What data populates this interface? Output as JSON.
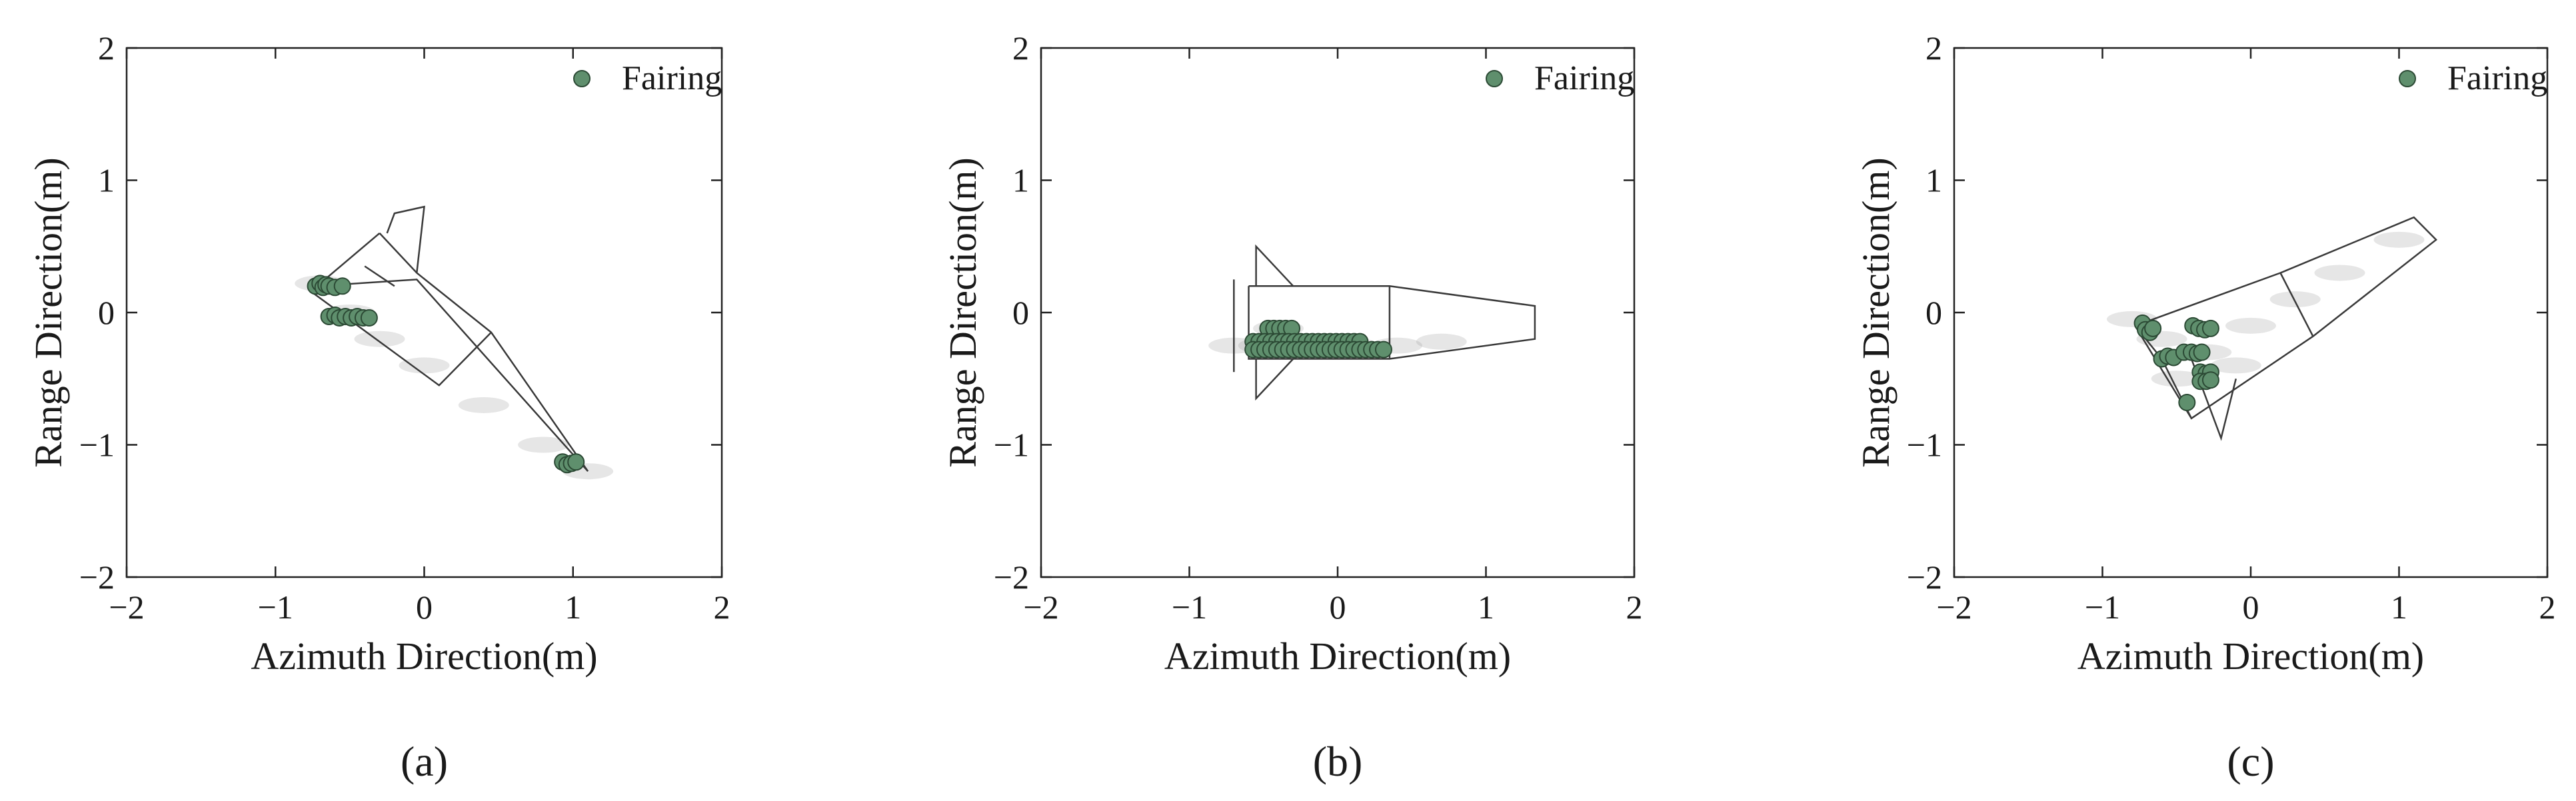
{
  "colors": {
    "marker_fill": "#5f8f6d",
    "marker_edge": "#2c4a35",
    "outline": "#3a3a3a",
    "axis": "#222222",
    "clutter": "#9a9a9a"
  },
  "chart_data": [
    {
      "type": "scatter",
      "panel_label": "(a)",
      "xlabel": "Azimuth Direction(m)",
      "ylabel": "Range Direction(m)",
      "xlim": [
        -2,
        2
      ],
      "ylim": [
        -2,
        2
      ],
      "xticks": [
        "−2",
        "−1",
        "0",
        "1",
        "2"
      ],
      "yticks": [
        "−2",
        "−1",
        "0",
        "1",
        "2"
      ],
      "legend_placement": "top-right",
      "series": [
        {
          "name": "Fairing",
          "points": [
            [
              -0.73,
              0.2
            ],
            [
              -0.7,
              0.22
            ],
            [
              -0.68,
              0.19
            ],
            [
              -0.66,
              0.21
            ],
            [
              -0.64,
              0.2
            ],
            [
              -0.6,
              0.19
            ],
            [
              -0.55,
              0.2
            ],
            [
              -0.64,
              -0.03
            ],
            [
              -0.6,
              -0.02
            ],
            [
              -0.57,
              -0.04
            ],
            [
              -0.53,
              -0.03
            ],
            [
              -0.49,
              -0.04
            ],
            [
              -0.45,
              -0.03
            ],
            [
              -0.41,
              -0.04
            ],
            [
              -0.37,
              -0.04
            ],
            [
              0.93,
              -1.13
            ],
            [
              0.96,
              -1.15
            ],
            [
              0.99,
              -1.14
            ],
            [
              1.02,
              -1.13
            ]
          ]
        }
      ],
      "outline": [
        {
          "name": "nose-cone",
          "polyline": [
            [
              -0.3,
              0.6
            ],
            [
              -0.05,
              0.3
            ],
            [
              0.45,
              -0.15
            ],
            [
              1.1,
              -1.2
            ],
            [
              -0.05,
              0.25
            ],
            [
              -0.72,
              0.2
            ],
            [
              -0.3,
              0.6
            ]
          ]
        },
        {
          "name": "upper-fin",
          "polyline": [
            [
              -0.25,
              0.6
            ],
            [
              -0.2,
              0.75
            ],
            [
              0.0,
              0.8
            ],
            [
              -0.05,
              0.3
            ]
          ]
        },
        {
          "name": "body-panel",
          "polyline": [
            [
              -0.75,
              0.15
            ],
            [
              0.1,
              -0.55
            ],
            [
              0.45,
              -0.15
            ]
          ]
        },
        {
          "name": "fin-root",
          "polyline": [
            [
              -0.4,
              0.35
            ],
            [
              -0.2,
              0.2
            ]
          ]
        }
      ],
      "clutter": [
        [
          -0.7,
          0.22
        ],
        [
          -0.5,
          0.0
        ],
        [
          -0.3,
          -0.2
        ],
        [
          0.0,
          -0.4
        ],
        [
          0.4,
          -0.7
        ],
        [
          0.8,
          -1.0
        ],
        [
          1.1,
          -1.2
        ]
      ]
    },
    {
      "type": "scatter",
      "panel_label": "(b)",
      "xlabel": "Azimuth Direction(m)",
      "ylabel": "Range Direction(m)",
      "xlim": [
        -2,
        2
      ],
      "ylim": [
        -2,
        2
      ],
      "xticks": [
        "−2",
        "−1",
        "0",
        "1",
        "2"
      ],
      "yticks": [
        "−2",
        "−1",
        "0",
        "1",
        "2"
      ],
      "legend_placement": "top-right",
      "series": [
        {
          "name": "Fairing",
          "points": [
            [
              -0.47,
              -0.12
            ],
            [
              -0.43,
              -0.12
            ],
            [
              -0.39,
              -0.12
            ],
            [
              -0.35,
              -0.12
            ],
            [
              -0.31,
              -0.12
            ],
            [
              -0.57,
              -0.22
            ],
            [
              -0.53,
              -0.22
            ],
            [
              -0.49,
              -0.22
            ],
            [
              -0.45,
              -0.22
            ],
            [
              -0.41,
              -0.22
            ],
            [
              -0.37,
              -0.22
            ],
            [
              -0.33,
              -0.22
            ],
            [
              -0.29,
              -0.22
            ],
            [
              -0.25,
              -0.22
            ],
            [
              -0.21,
              -0.22
            ],
            [
              -0.17,
              -0.22
            ],
            [
              -0.13,
              -0.22
            ],
            [
              -0.09,
              -0.22
            ],
            [
              -0.05,
              -0.22
            ],
            [
              -0.01,
              -0.22
            ],
            [
              0.03,
              -0.22
            ],
            [
              0.07,
              -0.22
            ],
            [
              0.11,
              -0.22
            ],
            [
              0.15,
              -0.22
            ],
            [
              -0.57,
              -0.28
            ],
            [
              -0.53,
              -0.28
            ],
            [
              -0.49,
              -0.28
            ],
            [
              -0.45,
              -0.28
            ],
            [
              -0.41,
              -0.28
            ],
            [
              -0.37,
              -0.28
            ],
            [
              -0.33,
              -0.28
            ],
            [
              -0.29,
              -0.28
            ],
            [
              -0.25,
              -0.28
            ],
            [
              -0.21,
              -0.28
            ],
            [
              -0.17,
              -0.28
            ],
            [
              -0.13,
              -0.28
            ],
            [
              -0.09,
              -0.28
            ],
            [
              -0.05,
              -0.28
            ],
            [
              -0.01,
              -0.28
            ],
            [
              0.03,
              -0.28
            ],
            [
              0.07,
              -0.28
            ],
            [
              0.11,
              -0.28
            ],
            [
              0.15,
              -0.28
            ],
            [
              0.19,
              -0.28
            ],
            [
              0.23,
              -0.28
            ],
            [
              0.27,
              -0.28
            ],
            [
              0.31,
              -0.28
            ]
          ]
        }
      ],
      "outline": [
        {
          "name": "body",
          "polyline": [
            [
              -0.6,
              0.2
            ],
            [
              0.35,
              0.2
            ],
            [
              1.33,
              0.05
            ],
            [
              1.33,
              -0.2
            ],
            [
              0.35,
              -0.35
            ],
            [
              -0.6,
              -0.35
            ],
            [
              -0.6,
              0.2
            ]
          ]
        },
        {
          "name": "upper-fin",
          "polyline": [
            [
              -0.55,
              0.2
            ],
            [
              -0.55,
              0.5
            ],
            [
              -0.3,
              0.2
            ]
          ]
        },
        {
          "name": "lower-fin",
          "polyline": [
            [
              -0.55,
              -0.35
            ],
            [
              -0.55,
              -0.65
            ],
            [
              -0.3,
              -0.35
            ]
          ]
        },
        {
          "name": "rear-plate",
          "polyline": [
            [
              -0.7,
              0.25
            ],
            [
              -0.7,
              -0.45
            ]
          ]
        },
        {
          "name": "section-line",
          "polyline": [
            [
              0.35,
              0.2
            ],
            [
              0.35,
              -0.35
            ]
          ]
        }
      ],
      "clutter": [
        [
          -0.5,
          -0.25
        ],
        [
          -0.2,
          -0.25
        ],
        [
          0.1,
          -0.25
        ],
        [
          0.4,
          -0.25
        ],
        [
          0.7,
          -0.22
        ],
        [
          -0.7,
          -0.25
        ],
        [
          -0.4,
          -0.12
        ]
      ]
    },
    {
      "type": "scatter",
      "panel_label": "(c)",
      "xlabel": "Azimuth Direction(m)",
      "ylabel": "Range Direction(m)",
      "xlim": [
        -2,
        2
      ],
      "ylim": [
        -2,
        2
      ],
      "xticks": [
        "−2",
        "−1",
        "0",
        "1",
        "2"
      ],
      "yticks": [
        "−2",
        "−1",
        "0",
        "1",
        "2"
      ],
      "legend_placement": "top-right",
      "series": [
        {
          "name": "Fairing",
          "points": [
            [
              -0.73,
              -0.08
            ],
            [
              -0.71,
              -0.13
            ],
            [
              -0.68,
              -0.15
            ],
            [
              -0.66,
              -0.12
            ],
            [
              -0.39,
              -0.1
            ],
            [
              -0.35,
              -0.12
            ],
            [
              -0.31,
              -0.13
            ],
            [
              -0.27,
              -0.12
            ],
            [
              -0.6,
              -0.35
            ],
            [
              -0.56,
              -0.33
            ],
            [
              -0.52,
              -0.34
            ],
            [
              -0.45,
              -0.3
            ],
            [
              -0.4,
              -0.3
            ],
            [
              -0.36,
              -0.31
            ],
            [
              -0.33,
              -0.3
            ],
            [
              -0.34,
              -0.45
            ],
            [
              -0.3,
              -0.46
            ],
            [
              -0.27,
              -0.45
            ],
            [
              -0.34,
              -0.52
            ],
            [
              -0.3,
              -0.52
            ],
            [
              -0.27,
              -0.51
            ],
            [
              -0.43,
              -0.68
            ]
          ]
        }
      ],
      "outline": [
        {
          "name": "body",
          "polyline": [
            [
              -0.78,
              -0.1
            ],
            [
              0.2,
              0.3
            ],
            [
              1.1,
              0.72
            ],
            [
              1.25,
              0.55
            ],
            [
              0.42,
              -0.18
            ],
            [
              -0.4,
              -0.8
            ],
            [
              -0.78,
              -0.1
            ]
          ]
        },
        {
          "name": "section-line",
          "polyline": [
            [
              0.2,
              0.3
            ],
            [
              0.42,
              -0.18
            ]
          ]
        },
        {
          "name": "lower-fin",
          "polyline": [
            [
              -0.4,
              -0.35
            ],
            [
              -0.2,
              -0.95
            ],
            [
              -0.1,
              -0.5
            ]
          ]
        },
        {
          "name": "fin-edge",
          "polyline": [
            [
              -0.78,
              -0.1
            ],
            [
              -0.6,
              -0.35
            ],
            [
              -0.4,
              -0.8
            ]
          ]
        }
      ],
      "clutter": [
        [
          -0.6,
          -0.2
        ],
        [
          -0.3,
          -0.3
        ],
        [
          0.0,
          -0.1
        ],
        [
          -0.1,
          -0.4
        ],
        [
          0.3,
          0.1
        ],
        [
          -0.5,
          -0.5
        ],
        [
          0.6,
          0.3
        ],
        [
          1.0,
          0.55
        ],
        [
          -0.8,
          -0.05
        ]
      ]
    }
  ]
}
